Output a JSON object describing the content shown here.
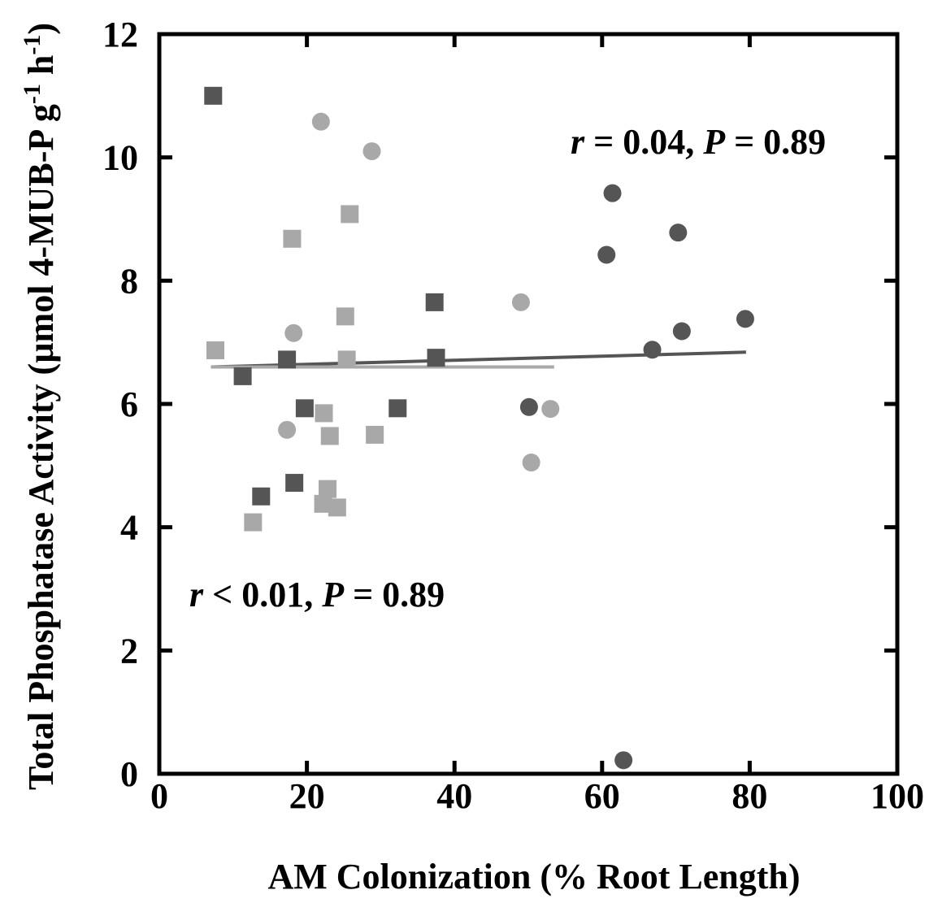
{
  "chart_data": {
    "type": "scatter",
    "xlabel": "AM  Colonization (% Root Length)",
    "ylabel_parts": [
      "Total Phosphatase Activity (µmol 4-MUB-P g",
      "-1",
      " h",
      "-1",
      ")"
    ],
    "xlim": [
      0,
      100
    ],
    "ylim": [
      0,
      12
    ],
    "x_ticks": [
      "0",
      "20",
      "40",
      "60",
      "80",
      "100"
    ],
    "y_ticks": [
      "0",
      "2",
      "4",
      "6",
      "8",
      "10",
      "12"
    ],
    "x_tick_values": [
      0,
      20,
      40,
      60,
      80,
      100
    ],
    "y_tick_values": [
      0,
      2,
      4,
      6,
      8,
      10,
      12
    ],
    "colors": {
      "dark": "#555555",
      "light": "#a8a8a8",
      "axis": "#000000"
    },
    "series": [
      {
        "marker": "square",
        "color": "#555555",
        "points": [
          [
            7.3,
            11.0
          ],
          [
            11.3,
            6.45
          ],
          [
            13.8,
            4.5
          ],
          [
            17.3,
            6.72
          ],
          [
            18.3,
            4.72
          ],
          [
            19.7,
            5.93
          ],
          [
            32.3,
            5.93
          ],
          [
            37.3,
            7.65
          ],
          [
            37.5,
            6.75
          ]
        ]
      },
      {
        "marker": "square",
        "color": "#a8a8a8",
        "points": [
          [
            7.6,
            6.87
          ],
          [
            12.7,
            4.08
          ],
          [
            18.0,
            8.68
          ],
          [
            22.2,
            4.38
          ],
          [
            22.3,
            5.85
          ],
          [
            22.8,
            4.62
          ],
          [
            23.1,
            5.48
          ],
          [
            24.1,
            4.32
          ],
          [
            25.2,
            7.42
          ],
          [
            25.4,
            6.72
          ],
          [
            25.8,
            9.08
          ],
          [
            29.2,
            5.5
          ]
        ]
      },
      {
        "marker": "circle",
        "color": "#a8a8a8",
        "points": [
          [
            17.3,
            5.58
          ],
          [
            18.2,
            7.15
          ],
          [
            21.9,
            10.58
          ],
          [
            28.8,
            10.1
          ],
          [
            49.0,
            7.65
          ],
          [
            50.4,
            5.05
          ],
          [
            53.0,
            5.92
          ]
        ]
      },
      {
        "marker": "circle",
        "color": "#555555",
        "points": [
          [
            50.1,
            5.95
          ],
          [
            60.6,
            8.42
          ],
          [
            61.4,
            9.42
          ],
          [
            62.9,
            0.22
          ],
          [
            66.8,
            6.88
          ],
          [
            70.3,
            8.78
          ],
          [
            70.8,
            7.18
          ],
          [
            79.4,
            7.38
          ]
        ]
      }
    ],
    "fit_lines": [
      {
        "color": "#555555",
        "x": [
          7,
          79.5
        ],
        "y": [
          6.6,
          6.84
        ]
      },
      {
        "color": "#a8a8a8",
        "x": [
          7,
          53.5
        ],
        "y": [
          6.6,
          6.6
        ]
      }
    ],
    "annotations": [
      {
        "parts": [
          [
            "r",
            true
          ],
          [
            " = 0.04, ",
            false
          ],
          [
            "P",
            true
          ],
          [
            " = 0.89",
            false
          ]
        ]
      },
      {
        "parts": [
          [
            "r",
            true
          ],
          [
            " < 0.01, ",
            false
          ],
          [
            "P",
            true
          ],
          [
            " = 0.89",
            false
          ]
        ]
      }
    ]
  }
}
